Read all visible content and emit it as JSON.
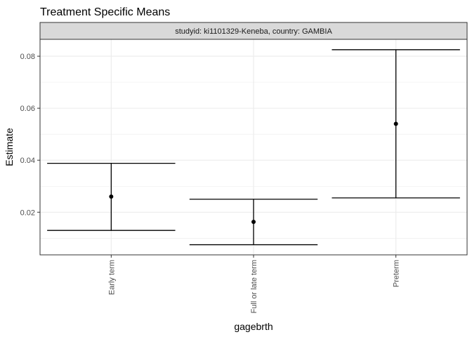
{
  "chart_data": {
    "type": "scatter",
    "title": "Treatment Specific Means",
    "facet_label": "studyid: ki1101329-Keneba, country: GAMBIA",
    "xlabel": "gagebrth",
    "ylabel": "Estimate",
    "categories": [
      "Early term",
      "Full or late term",
      "Preterm"
    ],
    "estimate": [
      0.026,
      0.0163,
      0.054
    ],
    "ci_lower": [
      0.013,
      0.0075,
      0.0255
    ],
    "ci_upper": [
      0.0388,
      0.025,
      0.0825
    ],
    "yticks": [
      "0.02",
      "0.04",
      "0.06",
      "0.08"
    ],
    "ylim": [
      0.0036,
      0.0865
    ],
    "grid": true,
    "colors": {
      "point": "#000000",
      "errorbar": "#000000",
      "grid": "#ebebeb",
      "panel_border": "#333333",
      "strip_fill": "#d9d9d9"
    }
  }
}
